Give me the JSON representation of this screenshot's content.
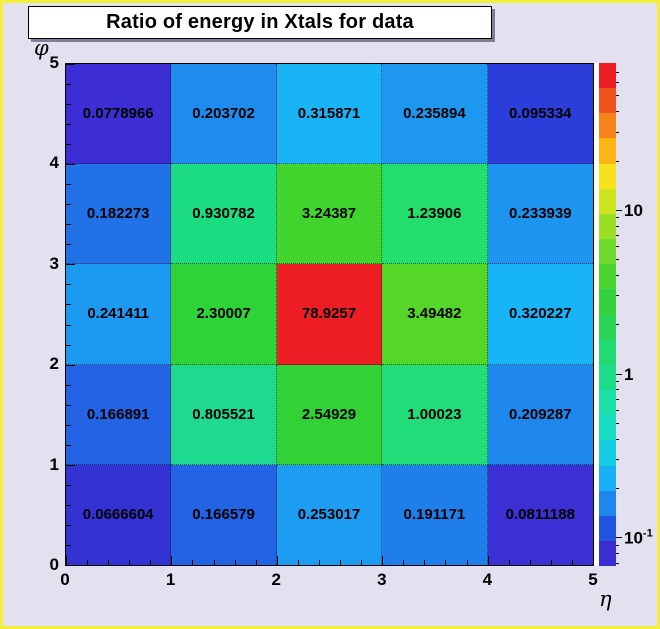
{
  "title_box": {
    "text": "Ratio of energy in Xtals for data"
  },
  "axes": {
    "x_title": "η",
    "y_title": "φ",
    "x_tick_labels": [
      "0",
      "1",
      "2",
      "3",
      "4",
      "5"
    ],
    "y_tick_labels_top_to_bottom": [
      "5",
      "4",
      "3",
      "2",
      "1",
      "0"
    ]
  },
  "chart_data": {
    "type": "heatmap",
    "title": "Ratio of energy in Xtals for data",
    "xlabel": "η",
    "ylabel": "φ",
    "x_range": [
      0,
      5
    ],
    "y_range": [
      0,
      5
    ],
    "x_bins": 5,
    "y_bins": 5,
    "z_scale": "log",
    "zmin": 0.0666604,
    "zmax": 78.9257,
    "grid": "dotted",
    "rows_top_to_bottom": [
      {
        "phi_bin": "4-5",
        "cells": [
          {
            "value": "0.0778966",
            "color": "#3c2ed4"
          },
          {
            "value": "0.203702",
            "color": "#1e8cee"
          },
          {
            "value": "0.315871",
            "color": "#18b4f6"
          },
          {
            "value": "0.235894",
            "color": "#1d97f0"
          },
          {
            "value": "0.095334",
            "color": "#2b3ed9"
          }
        ]
      },
      {
        "phi_bin": "3-4",
        "cells": [
          {
            "value": "0.182273",
            "color": "#2172e7"
          },
          {
            "value": "0.930782",
            "color": "#1cdc82"
          },
          {
            "value": "3.24387",
            "color": "#41d42c"
          },
          {
            "value": "1.23906",
            "color": "#23de6d"
          },
          {
            "value": "0.233939",
            "color": "#1d95f0"
          }
        ]
      },
      {
        "phi_bin": "2-3",
        "cells": [
          {
            "value": "0.241411",
            "color": "#1c99f1"
          },
          {
            "value": "2.30007",
            "color": "#2ed339"
          },
          {
            "value": "78.9257",
            "color": "#ec1e24"
          },
          {
            "value": "3.49482",
            "color": "#55d729"
          },
          {
            "value": "0.320227",
            "color": "#17b5f7"
          }
        ]
      },
      {
        "phi_bin": "1-2",
        "cells": [
          {
            "value": "0.166891",
            "color": "#2264e3"
          },
          {
            "value": "0.805521",
            "color": "#1ed98f"
          },
          {
            "value": "2.54929",
            "color": "#31d235"
          },
          {
            "value": "1.00023",
            "color": "#20dd79"
          },
          {
            "value": "0.209287",
            "color": "#1e87ec"
          }
        ]
      },
      {
        "phi_bin": "0-1",
        "cells": [
          {
            "value": "0.0666604",
            "color": "#3333d4"
          },
          {
            "value": "0.166579",
            "color": "#2263e3"
          },
          {
            "value": "0.253017",
            "color": "#1c9df2"
          },
          {
            "value": "0.191171",
            "color": "#1f7fea"
          },
          {
            "value": "0.0811188",
            "color": "#3c2fd3"
          }
        ]
      }
    ],
    "colorbar": {
      "bands_top_to_bottom": [
        "#ec1e24",
        "#f1531d",
        "#f8821a",
        "#fdb515",
        "#f6e11a",
        "#cbe520",
        "#9bdf25",
        "#6ed92a",
        "#4bd42e",
        "#33d23a",
        "#29d557",
        "#21da74",
        "#1ddc8c",
        "#1adfa6",
        "#17dcc2",
        "#15cde2",
        "#17aff5",
        "#1e86ec",
        "#2155e1",
        "#3a2ed2"
      ],
      "tick_labels": [
        {
          "value": 10,
          "label": "10",
          "sup": ""
        },
        {
          "value": 1,
          "label": "1",
          "sup": ""
        },
        {
          "value": 0.1,
          "label": "10",
          "sup": "-1"
        }
      ]
    }
  }
}
